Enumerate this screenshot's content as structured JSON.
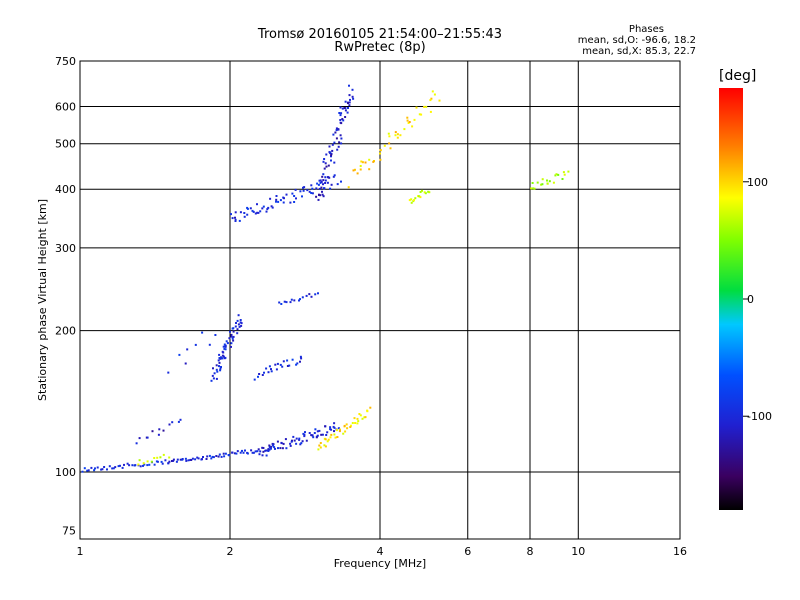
{
  "header": {
    "title": "Tromsø 20160105 21:54:00–21:55:43",
    "subtitle": "RwPretec (8p)",
    "stats_title": "Phases",
    "stats_line1": "mean, sd,O: -96.6, 18.2",
    "stats_line2": "mean, sd,X:  85.3, 22.7"
  },
  "colorbar": {
    "unit_label": "[deg]",
    "ticks": [
      {
        "value": 100,
        "label": "100"
      },
      {
        "value": 0,
        "label": "0"
      },
      {
        "value": -100,
        "label": "-100"
      }
    ],
    "range": [
      -180,
      180
    ]
  },
  "chart_data": {
    "type": "scatter",
    "title": "Tromsø 20160105 21:54:00–21:55:43",
    "subtitle": "RwPretec (8p)",
    "xlabel": "Frequency [MHz]",
    "ylabel": "Stationary phase Virtual Height [km]",
    "x_scale": "log",
    "y_scale": "log",
    "xlim": [
      1,
      16
    ],
    "ylim": [
      72,
      750
    ],
    "x_ticks": [
      1,
      2,
      4,
      6,
      8,
      10,
      16
    ],
    "x_tick_labels": [
      "1",
      "2",
      "4",
      "6",
      "8",
      "10",
      "16"
    ],
    "y_ticks": [
      75,
      100,
      200,
      300,
      400,
      500,
      600,
      750
    ],
    "y_tick_labels": [
      "75",
      "100",
      "200",
      "300",
      "400",
      "500",
      "600",
      "750"
    ],
    "grid": true,
    "series": [
      {
        "traces": [
          {
            "from": [
              1.0,
              101
            ],
            "to": [
              1.5,
              105
            ],
            "phase": -95,
            "n": 40,
            "spread": 2
          },
          {
            "from": [
              1.3,
              104
            ],
            "to": [
              1.5,
              108
            ],
            "phase": 75,
            "n": 10,
            "spread": 3
          },
          {
            "from": [
              1.5,
              105
            ],
            "to": [
              2.4,
              112
            ],
            "phase": -100,
            "n": 60,
            "spread": 2
          },
          {
            "from": [
              2.3,
              110
            ],
            "to": [
              3.3,
              125
            ],
            "phase": -105,
            "n": 70,
            "spread": 5
          },
          {
            "from": [
              3.0,
              113
            ],
            "to": [
              3.8,
              135
            ],
            "phase": 95,
            "n": 40,
            "spread": 4
          },
          {
            "from": [
              1.85,
              160
            ],
            "to": [
              2.1,
              210
            ],
            "phase": -100,
            "n": 60,
            "spread": 6
          },
          {
            "from": [
              2.25,
              160
            ],
            "to": [
              2.8,
              175
            ],
            "phase": -100,
            "n": 25,
            "spread": 4
          },
          {
            "from": [
              2.5,
              228
            ],
            "to": [
              3.0,
              240
            ],
            "phase": -100,
            "n": 15,
            "spread": 2
          },
          {
            "from": [
              2.0,
              345
            ],
            "to": [
              3.3,
              420
            ],
            "phase": -100,
            "n": 70,
            "spread": 6
          },
          {
            "from": [
              3.0,
              380
            ],
            "to": [
              3.5,
              650
            ],
            "phase": -110,
            "n": 80,
            "spread": 8
          },
          {
            "from": [
              3.5,
              420
            ],
            "to": [
              5.2,
              630
            ],
            "phase": 100,
            "n": 45,
            "spread": 8
          },
          {
            "from": [
              4.6,
              375
            ],
            "to": [
              5.0,
              400
            ],
            "phase": 75,
            "n": 15,
            "spread": 3
          },
          {
            "from": [
              8.0,
              405
            ],
            "to": [
              9.5,
              430
            ],
            "phase": 60,
            "n": 20,
            "spread": 4
          },
          {
            "from": [
              1.3,
              115
            ],
            "to": [
              1.6,
              130
            ],
            "phase": -110,
            "n": 12,
            "spread": 4
          },
          {
            "from": [
              1.5,
              170
            ],
            "to": [
              1.9,
              200
            ],
            "phase": -100,
            "n": 8,
            "spread": 10
          }
        ]
      }
    ]
  }
}
